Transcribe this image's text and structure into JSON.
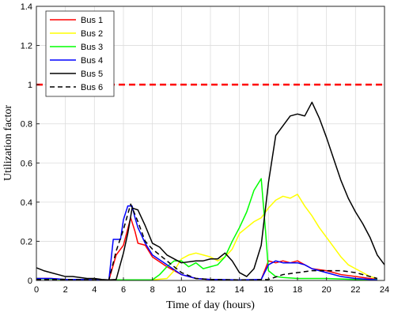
{
  "chart_data": {
    "type": "line",
    "xlabel": "Time of day (hours)",
    "ylabel": "Utilization factor",
    "xlim": [
      0,
      24
    ],
    "ylim": [
      0,
      1.4
    ],
    "xticks": [
      "0",
      "2",
      "4",
      "6",
      "8",
      "10",
      "12",
      "14",
      "16",
      "18",
      "20",
      "22",
      "24"
    ],
    "yticks": [
      "0",
      "0.2",
      "0.4",
      "0.6",
      "0.8",
      "1",
      "1.2",
      "1.4"
    ],
    "grid": true,
    "legend_position": "top-left",
    "reference_line": {
      "y": 1.0,
      "color": "#ff0000",
      "style": "dashed"
    },
    "series": [
      {
        "name": "Bus 1",
        "color": "#ff0000",
        "style": "solid",
        "points": [
          [
            0,
            0.01
          ],
          [
            1,
            0.01
          ],
          [
            2,
            0.005
          ],
          [
            3,
            0.005
          ],
          [
            4,
            0.003
          ],
          [
            5,
            0.003
          ],
          [
            5.5,
            0.13
          ],
          [
            6,
            0.18
          ],
          [
            6.5,
            0.32
          ],
          [
            6.8,
            0.25
          ],
          [
            7,
            0.19
          ],
          [
            7.5,
            0.18
          ],
          [
            8,
            0.12
          ],
          [
            9,
            0.07
          ],
          [
            10,
            0.03
          ],
          [
            11,
            0.01
          ],
          [
            12,
            0.005
          ],
          [
            13,
            0.003
          ],
          [
            14,
            0.003
          ],
          [
            15,
            0.003
          ],
          [
            15.5,
            0.005
          ],
          [
            16,
            0.1
          ],
          [
            16.5,
            0.09
          ],
          [
            17,
            0.1
          ],
          [
            17.5,
            0.09
          ],
          [
            18,
            0.1
          ],
          [
            18.5,
            0.08
          ],
          [
            19,
            0.06
          ],
          [
            20,
            0.05
          ],
          [
            21,
            0.03
          ],
          [
            22,
            0.02
          ],
          [
            23,
            0.01
          ],
          [
            23.5,
            0.005
          ]
        ]
      },
      {
        "name": "Bus 2",
        "color": "#ffff00",
        "style": "solid",
        "points": [
          [
            0,
            0.01
          ],
          [
            2,
            0.005
          ],
          [
            4,
            0.003
          ],
          [
            6,
            0.003
          ],
          [
            8,
            0.003
          ],
          [
            9,
            0.01
          ],
          [
            9.5,
            0.05
          ],
          [
            10,
            0.11
          ],
          [
            10.5,
            0.13
          ],
          [
            11,
            0.14
          ],
          [
            11.5,
            0.13
          ],
          [
            12,
            0.12
          ],
          [
            12.5,
            0.1
          ],
          [
            13,
            0.12
          ],
          [
            13.5,
            0.16
          ],
          [
            14,
            0.24
          ],
          [
            14.5,
            0.27
          ],
          [
            15,
            0.3
          ],
          [
            15.5,
            0.32
          ],
          [
            16,
            0.37
          ],
          [
            16.5,
            0.41
          ],
          [
            17,
            0.43
          ],
          [
            17.5,
            0.42
          ],
          [
            18,
            0.44
          ],
          [
            18.5,
            0.38
          ],
          [
            19,
            0.33
          ],
          [
            19.5,
            0.27
          ],
          [
            20,
            0.22
          ],
          [
            20.5,
            0.17
          ],
          [
            21,
            0.12
          ],
          [
            21.5,
            0.08
          ],
          [
            22,
            0.06
          ],
          [
            22.5,
            0.04
          ],
          [
            23,
            0.02
          ],
          [
            23.5,
            0.01
          ]
        ]
      },
      {
        "name": "Bus 3",
        "color": "#00ff00",
        "style": "solid",
        "points": [
          [
            0,
            0.01
          ],
          [
            2,
            0.005
          ],
          [
            4,
            0.003
          ],
          [
            6,
            0.003
          ],
          [
            8,
            0.003
          ],
          [
            8.5,
            0.03
          ],
          [
            9,
            0.07
          ],
          [
            9.5,
            0.1
          ],
          [
            10,
            0.1
          ],
          [
            10.5,
            0.07
          ],
          [
            11,
            0.09
          ],
          [
            11.5,
            0.06
          ],
          [
            12,
            0.07
          ],
          [
            12.5,
            0.08
          ],
          [
            13,
            0.12
          ],
          [
            13.5,
            0.2
          ],
          [
            14,
            0.27
          ],
          [
            14.5,
            0.35
          ],
          [
            15,
            0.46
          ],
          [
            15.5,
            0.52
          ],
          [
            15.8,
            0.25
          ],
          [
            16,
            0.05
          ],
          [
            16.5,
            0.02
          ],
          [
            17,
            0.015
          ],
          [
            18,
            0.01
          ],
          [
            20,
            0.01
          ],
          [
            22,
            0.005
          ],
          [
            23.5,
            0.005
          ]
        ]
      },
      {
        "name": "Bus 4",
        "color": "#0000ff",
        "style": "solid",
        "points": [
          [
            0,
            0.01
          ],
          [
            1,
            0.01
          ],
          [
            2,
            0.005
          ],
          [
            3,
            0.005
          ],
          [
            4,
            0.003
          ],
          [
            5,
            0.003
          ],
          [
            5.3,
            0.21
          ],
          [
            5.8,
            0.21
          ],
          [
            6,
            0.31
          ],
          [
            6.3,
            0.38
          ],
          [
            6.6,
            0.38
          ],
          [
            6.8,
            0.32
          ],
          [
            7,
            0.27
          ],
          [
            7.5,
            0.19
          ],
          [
            8,
            0.13
          ],
          [
            9,
            0.08
          ],
          [
            10,
            0.03
          ],
          [
            11,
            0.01
          ],
          [
            12,
            0.005
          ],
          [
            14,
            0.003
          ],
          [
            15.5,
            0.005
          ],
          [
            16,
            0.08
          ],
          [
            16.5,
            0.1
          ],
          [
            17,
            0.09
          ],
          [
            17.5,
            0.09
          ],
          [
            18,
            0.09
          ],
          [
            18.5,
            0.08
          ],
          [
            19,
            0.06
          ],
          [
            20,
            0.04
          ],
          [
            21,
            0.02
          ],
          [
            22,
            0.01
          ],
          [
            23,
            0.005
          ],
          [
            23.5,
            0.003
          ]
        ]
      },
      {
        "name": "Bus 5",
        "color": "#000000",
        "style": "solid",
        "points": [
          [
            0,
            0.065
          ],
          [
            0.5,
            0.05
          ],
          [
            1,
            0.04
          ],
          [
            1.5,
            0.03
          ],
          [
            2,
            0.02
          ],
          [
            2.5,
            0.02
          ],
          [
            3,
            0.015
          ],
          [
            3.5,
            0.01
          ],
          [
            4,
            0.01
          ],
          [
            4.5,
            0.005
          ],
          [
            5,
            0.003
          ],
          [
            5.5,
            0.005
          ],
          [
            6,
            0.14
          ],
          [
            6.3,
            0.24
          ],
          [
            6.6,
            0.37
          ],
          [
            7,
            0.36
          ],
          [
            7.5,
            0.28
          ],
          [
            8,
            0.19
          ],
          [
            8.5,
            0.17
          ],
          [
            9,
            0.13
          ],
          [
            10,
            0.09
          ],
          [
            11,
            0.1
          ],
          [
            11.5,
            0.1
          ],
          [
            12,
            0.11
          ],
          [
            12.5,
            0.11
          ],
          [
            13,
            0.14
          ],
          [
            13.5,
            0.1
          ],
          [
            14,
            0.04
          ],
          [
            14.5,
            0.02
          ],
          [
            15,
            0.06
          ],
          [
            15.5,
            0.18
          ],
          [
            16,
            0.5
          ],
          [
            16.5,
            0.74
          ],
          [
            17,
            0.79
          ],
          [
            17.5,
            0.84
          ],
          [
            18,
            0.85
          ],
          [
            18.5,
            0.84
          ],
          [
            19,
            0.91
          ],
          [
            19.5,
            0.83
          ],
          [
            20,
            0.73
          ],
          [
            20.5,
            0.62
          ],
          [
            21,
            0.51
          ],
          [
            21.5,
            0.42
          ],
          [
            22,
            0.35
          ],
          [
            22.5,
            0.29
          ],
          [
            23,
            0.22
          ],
          [
            23.5,
            0.13
          ],
          [
            24,
            0.08
          ]
        ]
      },
      {
        "name": "Bus 6",
        "color": "#000000",
        "style": "dashed",
        "points": [
          [
            0,
            0.005
          ],
          [
            2,
            0.005
          ],
          [
            4,
            0.003
          ],
          [
            5,
            0.003
          ],
          [
            5.5,
            0.15
          ],
          [
            6,
            0.26
          ],
          [
            6.5,
            0.39
          ],
          [
            7,
            0.3
          ],
          [
            7.5,
            0.2
          ],
          [
            8,
            0.16
          ],
          [
            9,
            0.1
          ],
          [
            10,
            0.04
          ],
          [
            11,
            0.01
          ],
          [
            12,
            0.005
          ],
          [
            14,
            0.003
          ],
          [
            15,
            0.003
          ],
          [
            16,
            0.005
          ],
          [
            17,
            0.03
          ],
          [
            18,
            0.04
          ],
          [
            19,
            0.05
          ],
          [
            20,
            0.05
          ],
          [
            21,
            0.05
          ],
          [
            22,
            0.04
          ],
          [
            23,
            0.02
          ],
          [
            23.5,
            0.01
          ]
        ]
      }
    ]
  }
}
